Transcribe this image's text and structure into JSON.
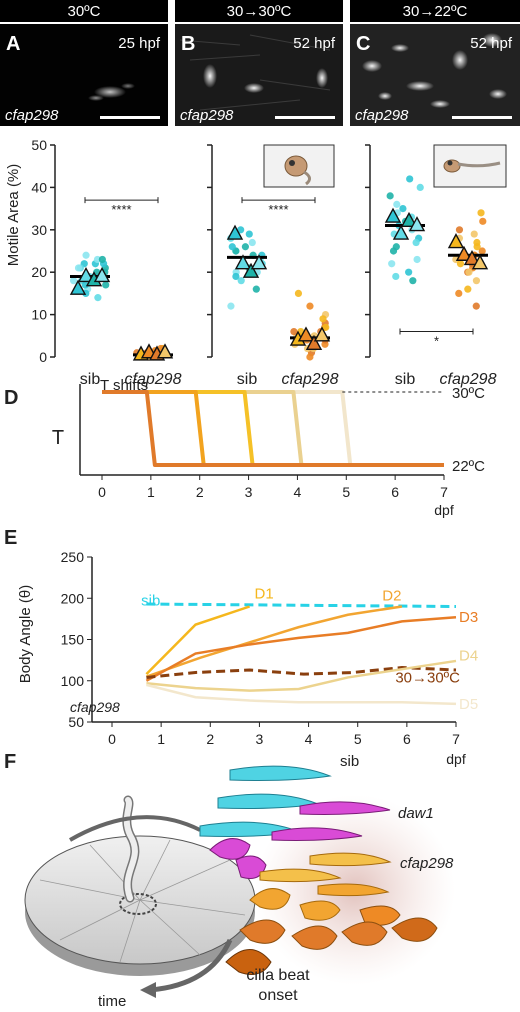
{
  "micro_panels": [
    {
      "header": "30ºC",
      "letter": "A",
      "time": "25 hpf",
      "gene": "cfap298"
    },
    {
      "header": "30→30ºC",
      "letter": "B",
      "time": "52 hpf",
      "gene": "cfap298"
    },
    {
      "header": "30→22ºC",
      "letter": "C",
      "time": "52 hpf",
      "gene": "cfap298"
    }
  ],
  "chart_data": [
    {
      "type": "scatter",
      "panel": "A-C lower",
      "ylabel": "Motile Area (%)",
      "ylim": [
        0,
        50
      ],
      "yticks": [
        0,
        10,
        20,
        30,
        40,
        50
      ],
      "groups": [
        {
          "categories": [
            "sib",
            "cfap298"
          ],
          "significance": "****",
          "sib": {
            "mean": 19,
            "replicates": [
              16,
              19,
              18,
              19
            ],
            "points": [
              22,
              21,
              20,
              24,
              22,
              18,
              17,
              16,
              15,
              19,
              21,
              23,
              17,
              19,
              20,
              18,
              22,
              14,
              23,
              21
            ]
          },
          "mutant": {
            "mean": 0.5,
            "replicates": [
              0.5,
              1,
              0.5,
              1
            ],
            "points": [
              0,
              0.5,
              1,
              1.5,
              2,
              0,
              1,
              0.5,
              0,
              2,
              1,
              0,
              0.5,
              1.5,
              1,
              0
            ]
          }
        },
        {
          "categories": [
            "sib",
            "cfap298"
          ],
          "significance": "****",
          "sib": {
            "mean": 23.5,
            "replicates": [
              29,
              22,
              20,
              22
            ],
            "points": [
              30,
              28,
              26,
              25,
              24,
              22,
              21,
              20,
              19,
              23,
              25,
              27,
              29,
              18,
              16,
              12,
              26,
              22,
              24,
              20
            ]
          },
          "mutant": {
            "mean": 4.5,
            "replicates": [
              4,
              5,
              3,
              5
            ],
            "points": [
              2,
              3,
              4,
              5,
              6,
              7,
              8,
              10,
              15,
              12,
              1,
              3,
              5,
              4,
              6,
              2,
              7,
              0,
              3,
              5,
              9,
              4,
              6,
              2
            ]
          }
        },
        {
          "categories": [
            "sib",
            "cfap298"
          ],
          "significance": "*",
          "sib": {
            "mean": 31,
            "replicates": [
              33,
              29,
              32,
              31
            ],
            "points": [
              42,
              40,
              38,
              36,
              35,
              33,
              32,
              30,
              28,
              27,
              25,
              22,
              20,
              19,
              18,
              34,
              31,
              29,
              26,
              23
            ]
          },
          "mutant": {
            "mean": 24,
            "replicates": [
              27,
              24,
              23,
              22
            ],
            "points": [
              34,
              32,
              30,
              28,
              27,
              25,
              24,
              23,
              22,
              21,
              20,
              18,
              16,
              15,
              12,
              29,
              26,
              24,
              22,
              20
            ]
          }
        }
      ]
    },
    {
      "type": "line",
      "panel": "D",
      "ylabel": "T",
      "xlabel": "dpf",
      "xlim": [
        0,
        7
      ],
      "x_ticks": [
        0,
        1,
        2,
        3,
        4,
        5,
        6,
        7
      ],
      "annotation": "T shifts",
      "levels": {
        "high": "30ºC",
        "low": "22ºC"
      },
      "shifts": [
        {
          "day": 1,
          "color": "#e07a2a"
        },
        {
          "day": 2,
          "color": "#f2a31f"
        },
        {
          "day": 3,
          "color": "#f5c127"
        },
        {
          "day": 4,
          "color": "#ead190"
        },
        {
          "day": 5,
          "color": "#f2e6cc"
        }
      ]
    },
    {
      "type": "line",
      "panel": "E",
      "ylabel": "Body Angle (θ)",
      "xlabel": "dpf",
      "xlim": [
        0,
        7
      ],
      "ylim": [
        50,
        250
      ],
      "yticks": [
        50,
        100,
        150,
        200,
        250
      ],
      "x_ticks": [
        0,
        1,
        2,
        3,
        4,
        5,
        6,
        7
      ],
      "inner_label": "cfap298",
      "series": [
        {
          "name": "sib",
          "color": "#28d2e6",
          "dashed": true,
          "x": [
            0.7,
            7
          ],
          "y": [
            193,
            190
          ]
        },
        {
          "name": "D1",
          "color": "#f5b71d",
          "x": [
            0.7,
            1.7,
            2.8
          ],
          "y": [
            108,
            168,
            190
          ]
        },
        {
          "name": "D2",
          "color": "#f2a531",
          "x": [
            0.7,
            1.8,
            3.8,
            4.8,
            5.9
          ],
          "y": [
            105,
            128,
            165,
            180,
            190
          ]
        },
        {
          "name": "D3",
          "color": "#e87d26",
          "x": [
            0.7,
            1.7,
            2.8,
            3.8,
            4.8,
            5.9,
            7
          ],
          "y": [
            100,
            133,
            144,
            152,
            158,
            172,
            177
          ]
        },
        {
          "name": "30→30ºC",
          "color": "#8a3f0e",
          "dashed": true,
          "x": [
            0.7,
            1.7,
            2.8,
            3.9,
            4.9,
            5.9,
            7
          ],
          "y": [
            104,
            110,
            113,
            108,
            110,
            116,
            113
          ]
        },
        {
          "name": "D4",
          "color": "#ecd38e",
          "x": [
            0.7,
            1.7,
            2.8,
            3.8,
            4.8,
            5.9,
            7
          ],
          "y": [
            97,
            91,
            88,
            90,
            104,
            114,
            124
          ]
        },
        {
          "name": "D5",
          "color": "#f3e7cc",
          "x": [
            0.7,
            1.7,
            2.8,
            3.8,
            4.8,
            5.9,
            7
          ],
          "y": [
            95,
            80,
            76,
            74,
            74,
            74,
            72
          ]
        }
      ]
    }
  ],
  "panel_letters": {
    "D": "D",
    "E": "E",
    "F": "F"
  },
  "panelF": {
    "labels": {
      "sib": "sib",
      "daw1": "daw1",
      "cfap298": "cfap298",
      "onset1": "cilia beat",
      "onset2": "onset",
      "time": "time"
    }
  },
  "colors": {
    "cyan": "#34c9d8",
    "teal": "#1fb3a8",
    "orange": "#ee8a25",
    "magenta": "#d83fd4",
    "dark_orange": "#c9620f"
  }
}
